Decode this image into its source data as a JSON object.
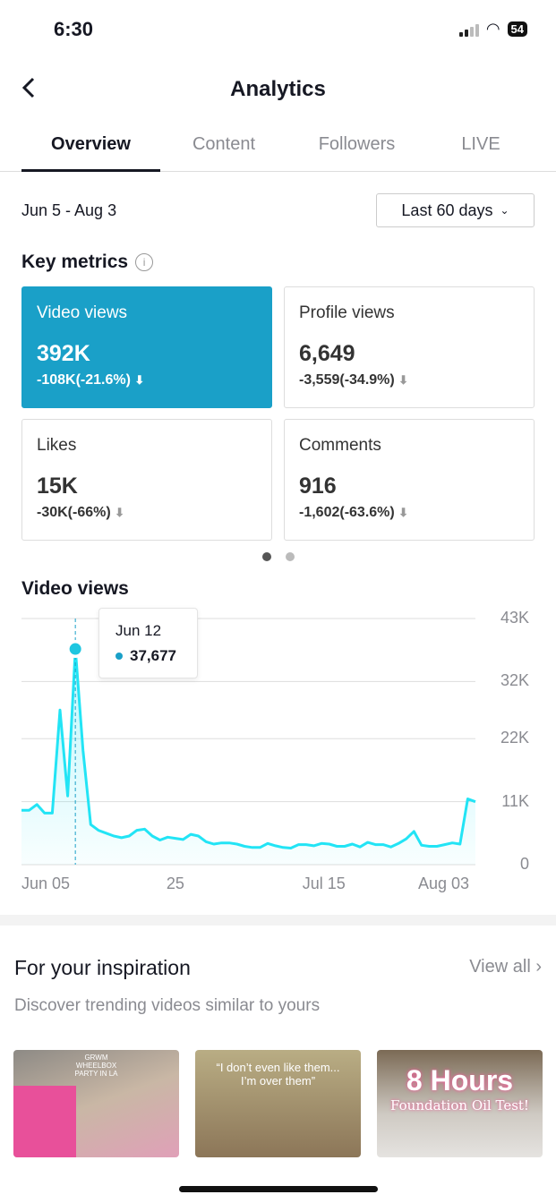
{
  "status": {
    "time": "6:30",
    "battery": "54"
  },
  "header": {
    "title": "Analytics",
    "back_icon": "chevron-left-icon"
  },
  "tabs": [
    "Overview",
    "Content",
    "Followers",
    "LIVE"
  ],
  "date_range": "Jun 5 - Aug 3",
  "period_select": "Last 60 days",
  "key_metrics": {
    "title": "Key metrics",
    "cards": [
      {
        "label": "Video views",
        "value": "392K",
        "change": "-108K(-21.6%)",
        "selected": true
      },
      {
        "label": "Profile views",
        "value": "6,649",
        "change": "-3,559(-34.9%)"
      },
      {
        "label": "Likes",
        "value": "15K",
        "change": "-30K(-66%)"
      },
      {
        "label": "Comments",
        "value": "916",
        "change": "-1,602(-63.6%)"
      }
    ]
  },
  "colors": {
    "accent": "#1aa0c8",
    "line": "#22e4f5"
  },
  "chart_data": {
    "type": "area",
    "title": "Video views",
    "x_start": "Jun 05",
    "x_end": "Aug 03",
    "xticks": [
      {
        "label": "Jun 05",
        "day": 0
      },
      {
        "label": "25",
        "day": 20
      },
      {
        "label": "Jul 15",
        "day": 40
      },
      {
        "label": "Aug 03",
        "day": 59
      }
    ],
    "yticks": [
      "43K",
      "32K",
      "22K",
      "11K",
      "0"
    ],
    "ytick_values": [
      43,
      32,
      22,
      11,
      0
    ],
    "ylim": [
      0,
      43
    ],
    "yunit": "K",
    "values": [
      9.5,
      9.5,
      10.5,
      9,
      9,
      27,
      12,
      37.677,
      20,
      7,
      6,
      5.5,
      5,
      4.7,
      5,
      6,
      6.2,
      5,
      4.3,
      4.8,
      4.6,
      4.4,
      5.3,
      5,
      4,
      3.6,
      3.8,
      3.8,
      3.6,
      3.2,
      3,
      3,
      3.7,
      3.3,
      3,
      2.9,
      3.5,
      3.5,
      3.3,
      3.7,
      3.6,
      3.2,
      3.2,
      3.6,
      3.1,
      3.9,
      3.5,
      3.5,
      3.1,
      3.7,
      4.5,
      5.8,
      3.4,
      3.2,
      3.2,
      3.5,
      3.8,
      3.6,
      11.5,
      11
    ],
    "tooltip": {
      "date": "Jun 12",
      "value": "37,677",
      "day": 7
    }
  },
  "inspiration": {
    "title": "For your inspiration",
    "view_all": "View all",
    "subtitle": "Discover trending videos similar to yours",
    "videos": [
      {
        "caption": "GRWM WHEELBOX PARTY IN LA"
      },
      {
        "caption": "“I don’t even like them... I’m over them”"
      },
      {
        "caption": "8 Hours",
        "caption2": "Foundation Oil Test!"
      }
    ]
  }
}
